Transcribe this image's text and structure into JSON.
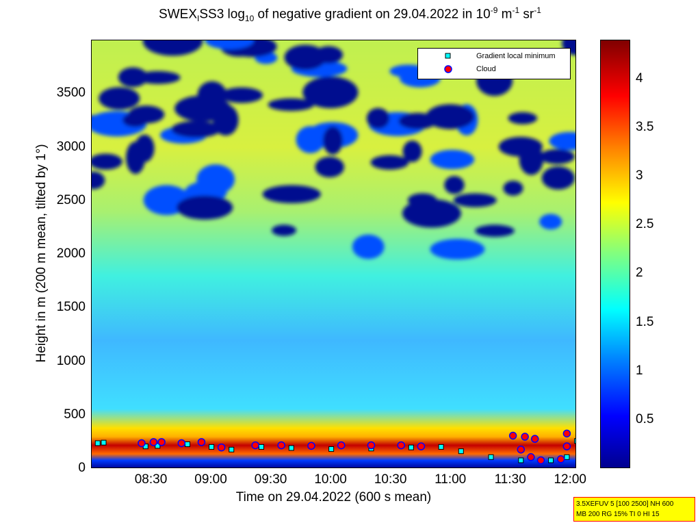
{
  "title": {
    "prefix": "SWEX",
    "sub1": "I",
    "mid": "SS3 log",
    "sub2": "10",
    "rest": " of negative gradient on 29.04.2022 in 10",
    "sup1": "-9",
    "unit1": " m",
    "sup2": "-1",
    "unit2": " sr",
    "sup3": "-1"
  },
  "legend": {
    "items": [
      {
        "label": "Gradient local minimum",
        "marker": "square",
        "color": "#00ffff"
      },
      {
        "label": "Cloud",
        "marker": "circle",
        "color": "#ff0000"
      }
    ]
  },
  "info_box": {
    "line1": "3.5XEFUV 5 [100 2500] NH 600",
    "line2": "MB 200 RG 15% TI 0 HI 15"
  },
  "colors": {
    "cloud_edge": "#0000ff",
    "gradient_marker": "#00ffff",
    "info_bg": "#ffff00"
  },
  "chart_data": {
    "type": "heatmap",
    "title": "SWEX_ISS3 log10 of negative gradient on 29.04.2022 in 10^-9 m^-1 sr^-1",
    "xlabel": "Time on 29.04.2022 (600 s mean)",
    "ylabel": "Height in m (200 m mean, tilted by 1°)",
    "x_ticks": [
      "08:30",
      "09:00",
      "09:30",
      "10:00",
      "10:30",
      "11:00",
      "11:30",
      "12:00"
    ],
    "y_ticks": [
      0,
      500,
      1000,
      1500,
      2000,
      2500,
      3000,
      3500
    ],
    "ylim": [
      0,
      4000
    ],
    "xlim": [
      "08:00",
      "12:03"
    ],
    "colorbar_ticks": [
      0.5,
      1,
      1.5,
      2,
      2.5,
      3,
      3.5,
      4
    ],
    "colorbar_range": [
      0,
      4.4
    ],
    "colormap": "jet",
    "gradient_local_minimum": [
      {
        "t": "08:03",
        "h": 240
      },
      {
        "t": "08:06",
        "h": 245
      },
      {
        "t": "08:27",
        "h": 210
      },
      {
        "t": "08:33",
        "h": 215
      },
      {
        "t": "08:48",
        "h": 230
      },
      {
        "t": "09:00",
        "h": 205
      },
      {
        "t": "09:10",
        "h": 180
      },
      {
        "t": "09:25",
        "h": 205
      },
      {
        "t": "09:40",
        "h": 195
      },
      {
        "t": "10:00",
        "h": 185
      },
      {
        "t": "10:20",
        "h": 190
      },
      {
        "t": "10:40",
        "h": 200
      },
      {
        "t": "10:55",
        "h": 205
      },
      {
        "t": "11:05",
        "h": 165
      },
      {
        "t": "11:20",
        "h": 110
      },
      {
        "t": "11:35",
        "h": 80
      },
      {
        "t": "11:50",
        "h": 80
      },
      {
        "t": "11:58",
        "h": 110
      },
      {
        "t": "12:03",
        "h": 260
      }
    ],
    "cloud": [
      {
        "t": "08:25",
        "h": 240
      },
      {
        "t": "08:31",
        "h": 250
      },
      {
        "t": "08:35",
        "h": 250
      },
      {
        "t": "08:45",
        "h": 240
      },
      {
        "t": "08:55",
        "h": 250
      },
      {
        "t": "09:05",
        "h": 200
      },
      {
        "t": "09:22",
        "h": 220
      },
      {
        "t": "09:35",
        "h": 220
      },
      {
        "t": "09:50",
        "h": 215
      },
      {
        "t": "10:05",
        "h": 220
      },
      {
        "t": "10:20",
        "h": 220
      },
      {
        "t": "10:35",
        "h": 220
      },
      {
        "t": "10:45",
        "h": 210
      },
      {
        "t": "11:31",
        "h": 310
      },
      {
        "t": "11:35",
        "h": 180
      },
      {
        "t": "11:37",
        "h": 300
      },
      {
        "t": "11:40",
        "h": 110
      },
      {
        "t": "11:42",
        "h": 280
      },
      {
        "t": "11:45",
        "h": 80
      },
      {
        "t": "11:55",
        "h": 90
      },
      {
        "t": "11:58",
        "h": 330
      },
      {
        "t": "11:58",
        "h": 210
      }
    ]
  }
}
